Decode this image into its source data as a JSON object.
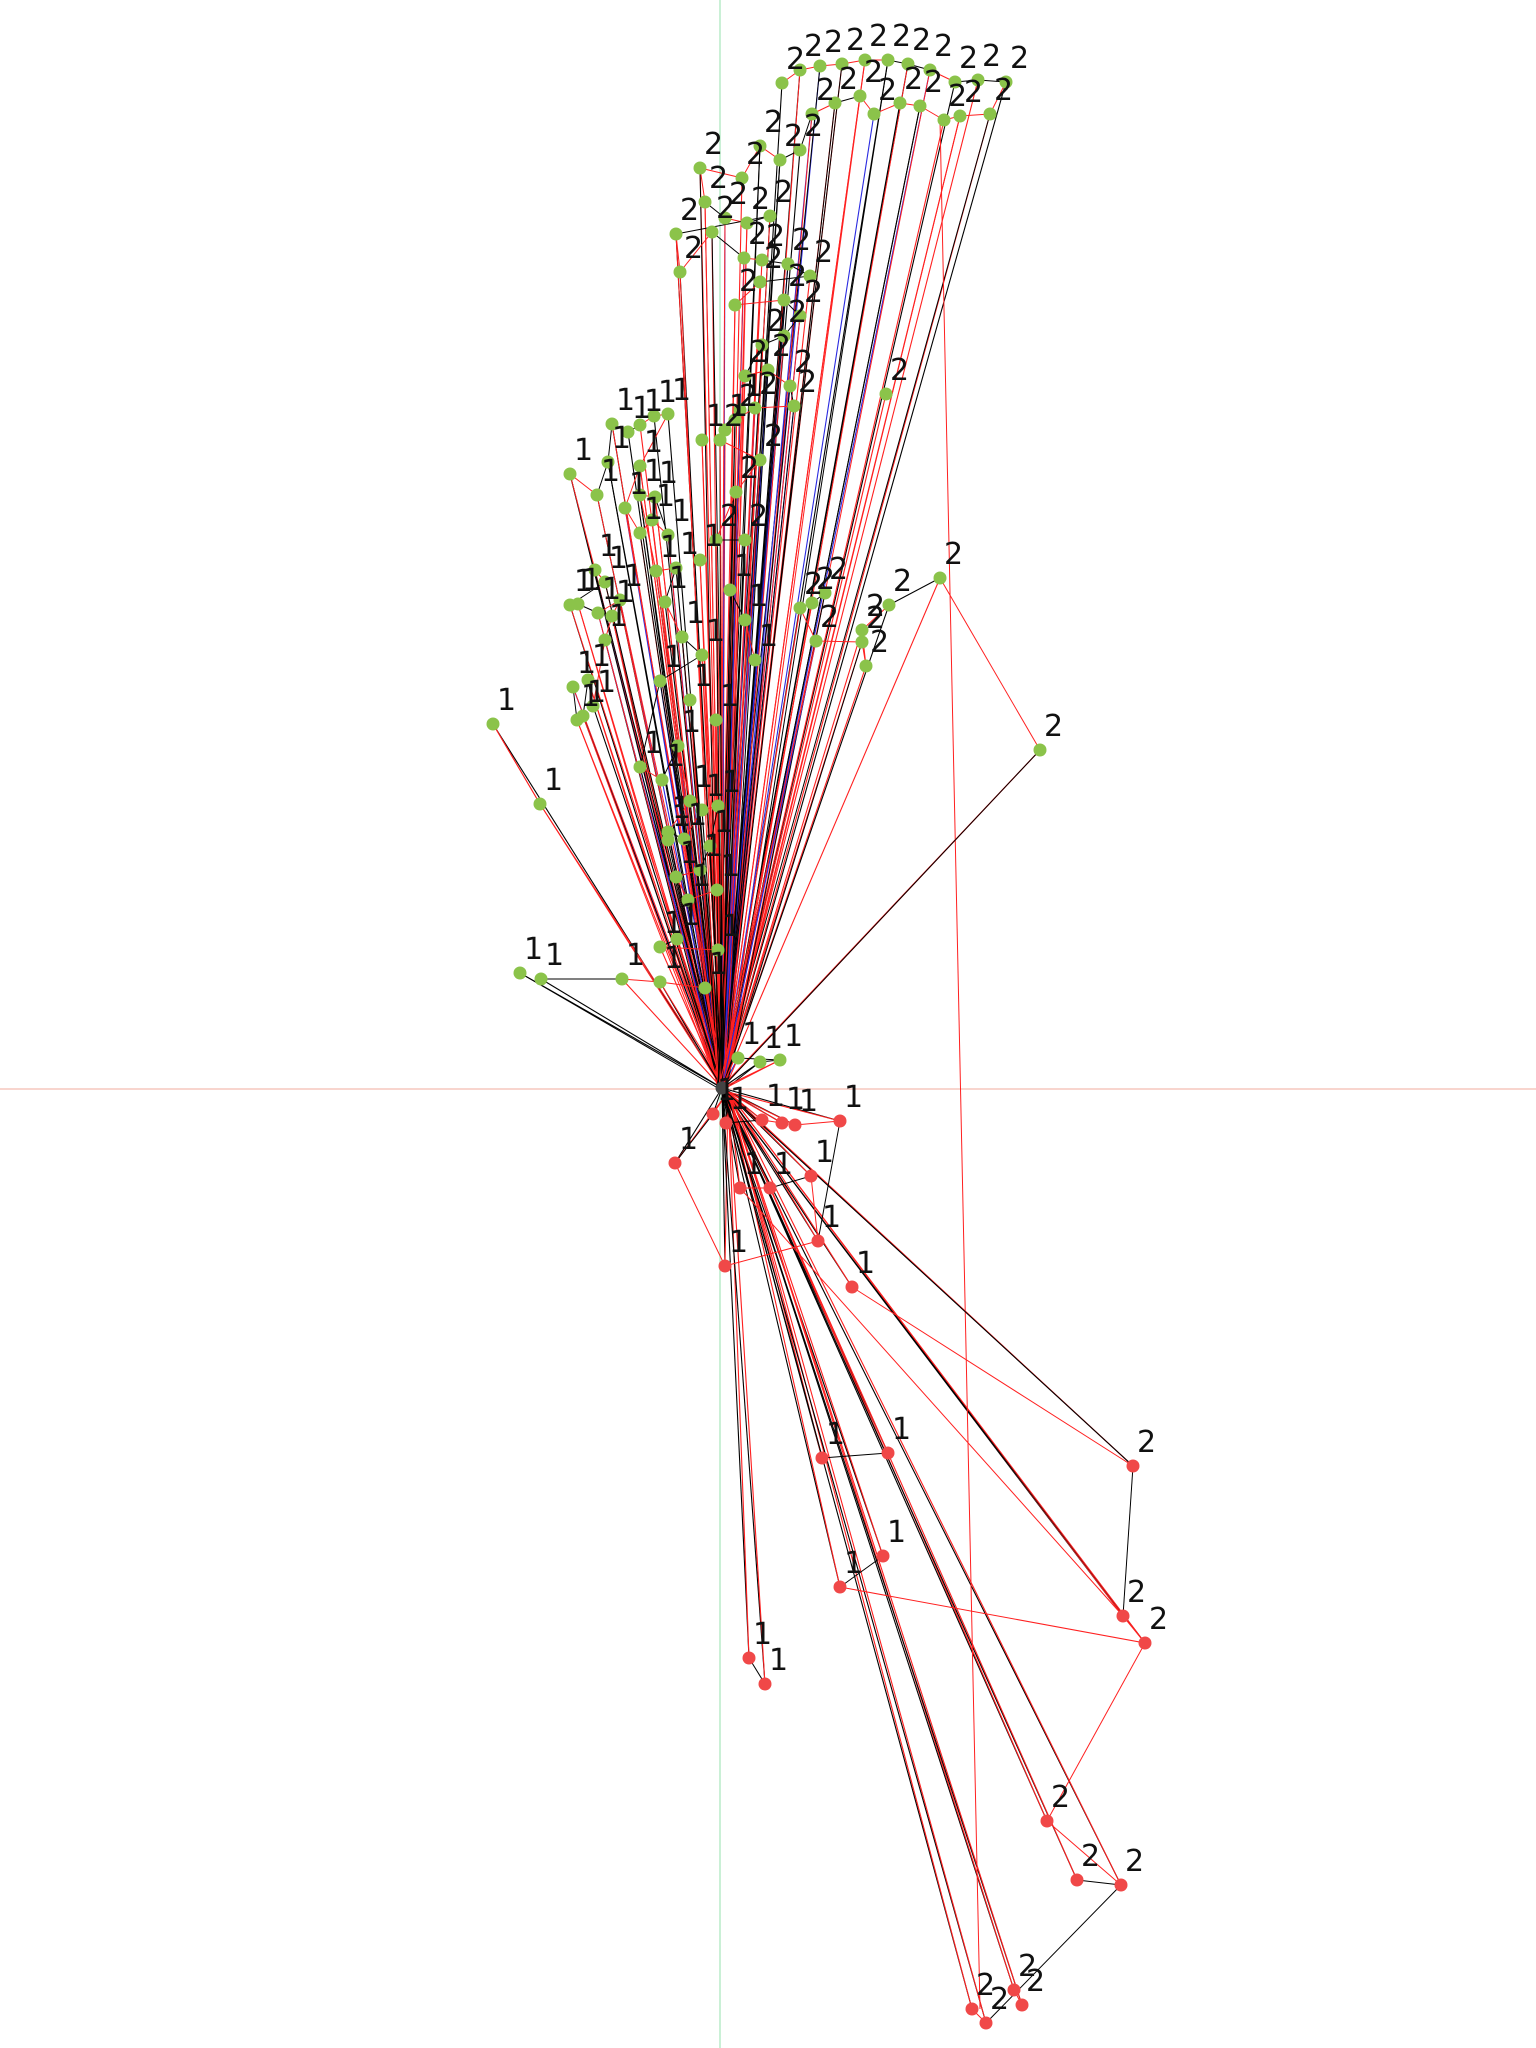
{
  "colors": {
    "background": "#ffffff",
    "axis_vertical": "#b8ecc8",
    "axis_horizontal": "#f6c7be",
    "edge_black": "#000000",
    "edge_red": "#ff2020",
    "edge_blue": "#2a2ae0",
    "node_green": "#8bc34a",
    "node_red": "#f04848",
    "label": "#111111"
  },
  "graph": {
    "hub_label": "",
    "upper_cluster": {
      "node_color": "green",
      "labels": [
        "1",
        "2"
      ]
    },
    "lower_cluster": {
      "node_color": "red",
      "labels": [
        "1",
        "2"
      ]
    }
  }
}
